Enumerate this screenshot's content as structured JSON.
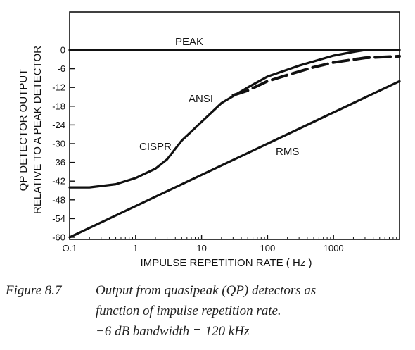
{
  "chart_data": {
    "type": "line",
    "xscale": "log",
    "xlim": [
      0.1,
      10000
    ],
    "ylim": [
      -60,
      0
    ],
    "xticks": [
      "O.1",
      "1",
      "10",
      "100",
      "1000"
    ],
    "xtick_values": [
      0.1,
      1,
      10,
      100,
      1000
    ],
    "yticks": [
      "0",
      "-6",
      "-12",
      "-18",
      "-24",
      "-30",
      "-36",
      "-42",
      "-48",
      "-54",
      "-60"
    ],
    "ytick_values": [
      0,
      -6,
      -12,
      -18,
      -24,
      -30,
      -36,
      -42,
      -48,
      -54,
      -60
    ],
    "xlabel": "IMPULSE REPETITION RATE ( Hz )",
    "ylabel": [
      "QP DETECTOR OUTPUT",
      "RELATIVE TO A PEAK DETECTOR"
    ],
    "grid": false,
    "series": [
      {
        "name": "PEAK",
        "style": "solid",
        "x": [
          0.1,
          10000
        ],
        "y": [
          0,
          0
        ]
      },
      {
        "name": "CISPR",
        "style": "solid",
        "x": [
          0.1,
          0.2,
          0.5,
          1,
          2,
          3,
          5,
          10,
          20,
          50,
          100,
          300,
          1000,
          2000,
          3000,
          10000
        ],
        "y": [
          -44,
          -44,
          -43,
          -41,
          -38,
          -35,
          -29,
          -23,
          -17,
          -12,
          -8.5,
          -5,
          -1.8,
          -0.6,
          0,
          0
        ]
      },
      {
        "name": "ANSI",
        "style": "dashed",
        "x": [
          30,
          50,
          100,
          200,
          500,
          1000,
          3000,
          10000
        ],
        "y": [
          -14.5,
          -13,
          -10,
          -8,
          -5.5,
          -4,
          -2.5,
          -2
        ]
      },
      {
        "name": "RMS",
        "style": "solid",
        "x": [
          0.1,
          10000
        ],
        "y": [
          -60,
          -10
        ]
      }
    ]
  },
  "caption": {
    "figure_label": "Figure 8.7",
    "line1": "Output from quasipeak (QP) detectors as",
    "line2": "function of impulse repetition rate.",
    "line3": "−6 dB bandwidth = 120 kHz"
  }
}
